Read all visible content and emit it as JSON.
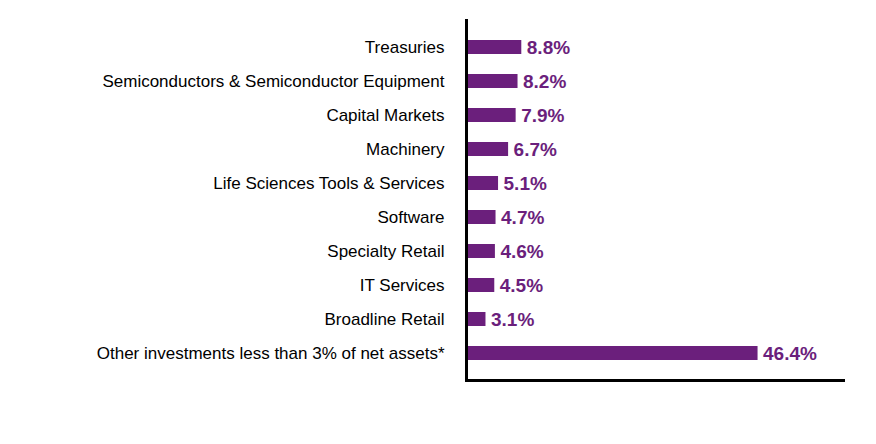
{
  "chart_data": {
    "type": "bar",
    "orientation": "horizontal",
    "categories": [
      "Treasuries",
      "Semiconductors & Semiconductor Equipment",
      "Capital Markets",
      "Machinery",
      "Life Sciences Tools & Services",
      "Software",
      "Specialty Retail",
      "IT Services",
      "Broadline Retail",
      "Other investments less than 3% of net assets*"
    ],
    "values": [
      8.8,
      8.2,
      7.9,
      6.7,
      5.1,
      4.7,
      4.6,
      4.5,
      3.1,
      46.4
    ],
    "value_labels": [
      "8.8%",
      "8.2%",
      "7.9%",
      "6.7%",
      "5.1%",
      "4.7%",
      "4.6%",
      "4.5%",
      "3.1%",
      "46.4%"
    ],
    "color": "#6b1f7c",
    "xlim": [
      0,
      60
    ],
    "data_labels": true,
    "tick_labels": "y",
    "grid": false
  }
}
